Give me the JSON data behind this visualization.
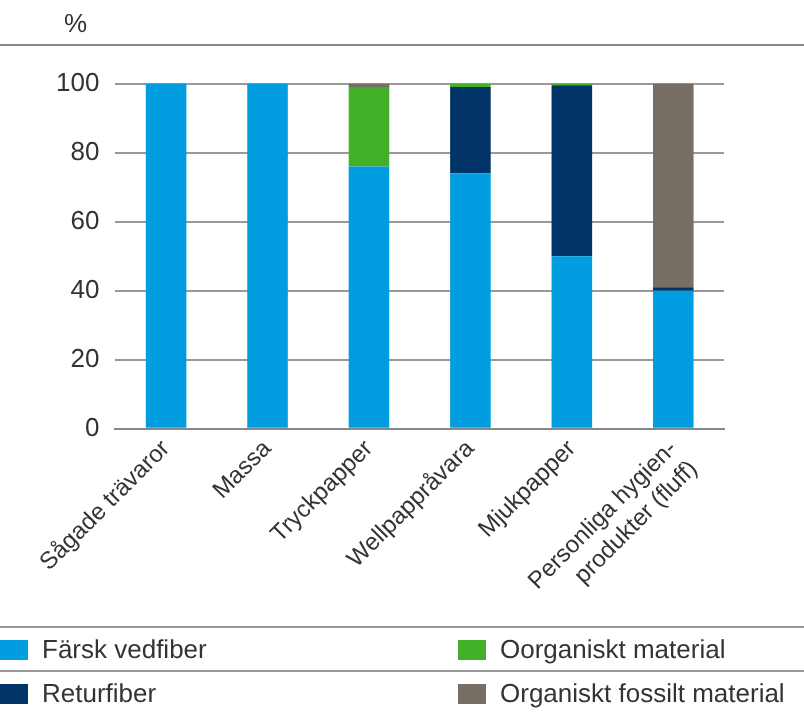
{
  "chart_data": {
    "type": "bar",
    "stacked": true,
    "ylabel": "%",
    "categories": [
      "Sågade trävaror",
      "Massa",
      "Tryckpapper",
      "Wellpappråvara",
      "Mjukpapper",
      "Personliga hygien-\nprodukter (fluff)"
    ],
    "series": [
      {
        "name": "Färsk vedfiber",
        "color": "#009ee0",
        "values": [
          100,
          100,
          76,
          74,
          50,
          40
        ]
      },
      {
        "name": "Returfiber",
        "color": "#003366",
        "values": [
          0,
          0,
          0,
          25,
          49.5,
          1
        ]
      },
      {
        "name": "Oorganiskt material",
        "color": "#43b02a",
        "values": [
          0,
          0,
          23,
          1,
          0.5,
          0
        ]
      },
      {
        "name": "Organiskt fossilt material",
        "color": "#776e66",
        "values": [
          0,
          0,
          1,
          0,
          0,
          59
        ]
      }
    ],
    "ylim": [
      0,
      100
    ],
    "yticks": [
      0,
      20,
      40,
      60,
      80,
      100
    ],
    "grid": "y",
    "legend": "bottom"
  }
}
